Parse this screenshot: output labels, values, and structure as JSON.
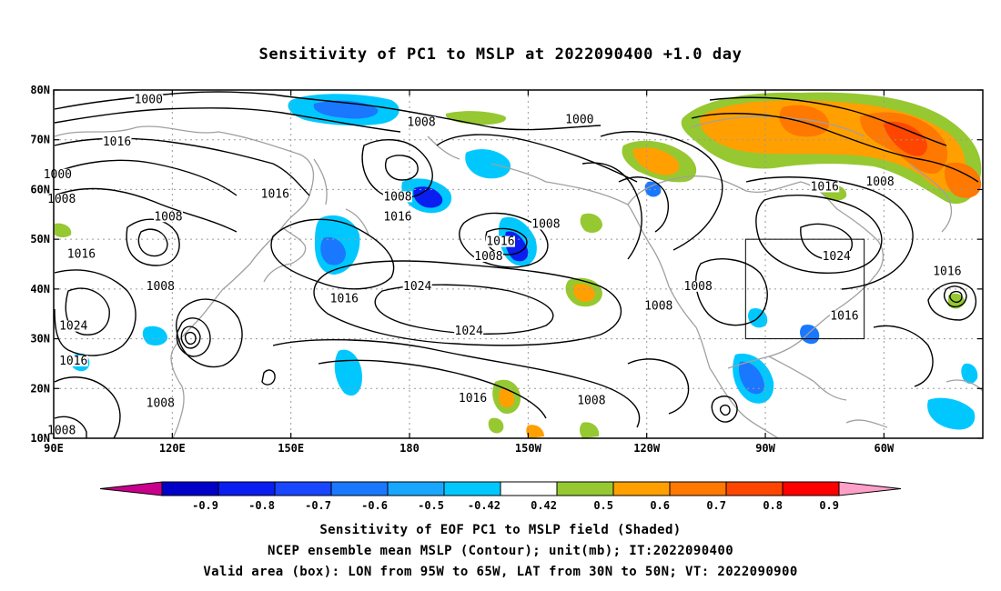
{
  "title": "Sensitivity of PC1 to MSLP at 2022090400 +1.0 day",
  "map": {
    "lon_labels": [
      "90E",
      "120E",
      "150E",
      "180",
      "150W",
      "120W",
      "90W",
      "60W"
    ],
    "lat_labels": [
      "80N",
      "70N",
      "60N",
      "50N",
      "40N",
      "30N",
      "20N",
      "10N"
    ],
    "contour_labels": [
      {
        "text": "1000",
        "lon": 114,
        "lat": 77.5
      },
      {
        "text": "1008",
        "lon": 183,
        "lat": 73
      },
      {
        "text": "1016",
        "lon": 106,
        "lat": 69
      },
      {
        "text": "1000",
        "lon": 91,
        "lat": 62.5
      },
      {
        "text": "1008",
        "lon": 92,
        "lat": 57.5
      },
      {
        "text": "1016",
        "lon": 146,
        "lat": 58.5
      },
      {
        "text": "1008",
        "lon": 177,
        "lat": 58
      },
      {
        "text": "1016",
        "lon": 177,
        "lat": 54
      },
      {
        "text": "1008",
        "lon": 119,
        "lat": 54
      },
      {
        "text": "1016",
        "lon": 97,
        "lat": 46.5
      },
      {
        "text": "1008",
        "lon": 214.5,
        "lat": 52.5
      },
      {
        "text": "1016",
        "lon": 203,
        "lat": 49
      },
      {
        "text": "1008",
        "lon": 200,
        "lat": 46
      },
      {
        "text": "1016",
        "lon": 163.5,
        "lat": 37.5
      },
      {
        "text": "1024",
        "lon": 182,
        "lat": 40
      },
      {
        "text": "1008",
        "lon": 117,
        "lat": 40
      },
      {
        "text": "1024",
        "lon": 195,
        "lat": 31
      },
      {
        "text": "1024",
        "lon": 95,
        "lat": 32
      },
      {
        "text": "1016",
        "lon": 95,
        "lat": 25
      },
      {
        "text": "1008",
        "lon": 117,
        "lat": 16.5
      },
      {
        "text": "1016",
        "lon": 196,
        "lat": 17.5
      },
      {
        "text": "1008",
        "lon": 226,
        "lat": 17
      },
      {
        "text": "1008",
        "lon": 92,
        "lat": 11
      },
      {
        "text": "1000",
        "lon": 223,
        "lat": 73.5
      },
      {
        "text": "1016",
        "lon": 285,
        "lat": 60
      },
      {
        "text": "1008",
        "lon": 299,
        "lat": 61
      },
      {
        "text": "1024",
        "lon": 288,
        "lat": 46
      },
      {
        "text": "1008",
        "lon": 253,
        "lat": 40
      },
      {
        "text": "1008",
        "lon": 243,
        "lat": 36
      },
      {
        "text": "1016",
        "lon": 290,
        "lat": 34
      },
      {
        "text": "1016",
        "lon": 316,
        "lat": 43
      }
    ],
    "valid_box": {
      "lon_west": 265,
      "lon_east": 295,
      "lat_south": 30,
      "lat_north": 50
    }
  },
  "colorbar": {
    "labels": [
      "-0.9",
      "-0.8",
      "-0.7",
      "-0.6",
      "-0.5",
      "-0.42",
      "0.42",
      "0.5",
      "0.6",
      "0.7",
      "0.8",
      "0.9"
    ],
    "colors": [
      "#0000c8",
      "#0a1ef0",
      "#1946ff",
      "#1a78ff",
      "#19a6ff",
      "#00c8ff",
      "#ffffff",
      "#96c832",
      "#ffa000",
      "#ff7800",
      "#ff4600",
      "#ff0000"
    ],
    "low_end_color": "#c8008c",
    "high_end_color": "#ffa0c8"
  },
  "footer": {
    "line1": "Sensitivity of EOF PC1 to MSLP field (Shaded)",
    "line2": "NCEP ensemble mean MSLP (Contour); unit(mb); IT:2022090400",
    "line3": "Valid area (box): LON from 95W to 65W, LAT from 30N to 50N; VT: 2022090900"
  }
}
